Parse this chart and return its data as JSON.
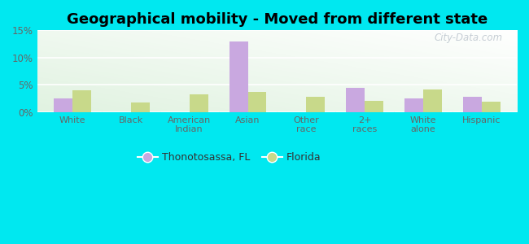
{
  "title": "Geographical mobility - Moved from different state",
  "categories": [
    "White",
    "Black",
    "American\nIndian",
    "Asian",
    "Other\nrace",
    "2+\nraces",
    "White\nalone",
    "Hispanic"
  ],
  "thonotosassa": [
    2.5,
    0,
    0,
    13.0,
    0,
    4.5,
    2.5,
    2.8
  ],
  "florida": [
    4.0,
    1.8,
    3.3,
    3.7,
    2.8,
    2.1,
    4.2,
    1.9
  ],
  "color_thonotosassa": "#c9a8e0",
  "color_florida": "#c8d98a",
  "ylim": [
    0,
    15
  ],
  "yticks": [
    0,
    5,
    10,
    15
  ],
  "ytick_labels": [
    "0%",
    "5%",
    "10%",
    "15%"
  ],
  "outer_bg": "#00e8f0",
  "legend_label_thonotosassa": "Thonotosassa, FL",
  "legend_label_florida": "Florida",
  "bar_width": 0.32,
  "title_fontsize": 13,
  "watermark": "City-Data.com"
}
